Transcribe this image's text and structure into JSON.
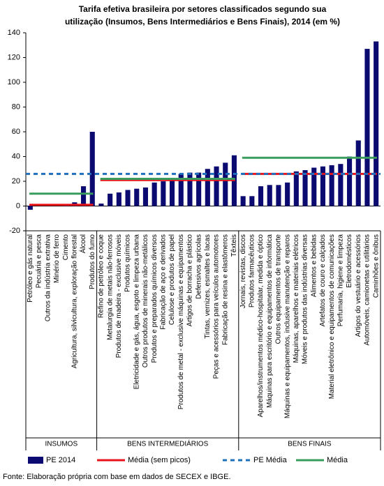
{
  "chart_data": {
    "type": "bar",
    "title": [
      "Tarifa efetiva brasileira por setores classificados segundo sua",
      "utilização (Insumos, Bens Intermediários e Bens Finais), 2014 (em %)"
    ],
    "groups": [
      {
        "name": "INSUMOS",
        "categories": [
          "Petróleo e gás natural",
          "Pecuária e pesca",
          "Outros da indústria extrativa",
          "Minério de ferro",
          "Cimento",
          "Agricultura, silvicultura, exploração florestal",
          "Álcool",
          "Produtos do fumo"
        ]
      },
      {
        "name": "BENS INTERMEDIÁRIOS",
        "categories": [
          "Refino de petróleo e coque",
          "Metalurgia de metais não-ferrosos",
          "Produtos de madeira - exclusive móveis",
          "Produtos  químicos",
          "Eletricidade e gás, água, esgoto e limpeza urbana",
          "Outros produtos de minerais não-metálicos",
          "Produtos e preparados químicos diversos",
          "Fabricação de aço e derivados",
          "Celulose e produtos de papel",
          "Produtos de metal - exclusive máquinas e equipamentos",
          "Artigos de borracha e plástico",
          "Defensivos agrícolas",
          "Tintas, vernizes, esmaltes e lacas",
          "Peças e acessórios para veículos automotores",
          "Fabricação de resina e elastômeros",
          "Têxteis"
        ]
      },
      {
        "name": "BENS FINAIS",
        "categories": [
          "Jornais, revistas, discos",
          "Produtos farmacêuticos",
          "Aparelhos/instrumentos médico-hospitalar, medida e óptico",
          "Máquinas para escritório e equipamentos de informática",
          "Outros equipamentos de transporte",
          "Máquinas e equipamentos, inclusive manutenção e reparos",
          "Máquinas, aparelhos e materiais elétricos",
          "Móveis e produtos das indústrias diversas",
          "Alimentos e bebidas",
          "Artefatos de couro e calçados",
          "Material eletrônico e equipamentos de comunicações",
          "Perfumaria, higiene e limpeza",
          "Eletrodomésticos",
          "Artigos do vestuário e acessórios",
          "Automóveis, camionetas e utilitários",
          "Caminhões e ônibus"
        ]
      }
    ],
    "series": [
      {
        "name": "PE 2014",
        "color": "#0a0a70",
        "values": [
          -3,
          0,
          0,
          0,
          1,
          3,
          16,
          60,
          2,
          10,
          11,
          13,
          14,
          15,
          19,
          20,
          22,
          26,
          27,
          27,
          30,
          32,
          35,
          41,
          8,
          8,
          16,
          17,
          17,
          19,
          28,
          29,
          31,
          32,
          33,
          34,
          40,
          53,
          127,
          133
        ]
      },
      {
        "name": "Média (sem picos)",
        "color": "#e8141b",
        "values": [
          1,
          21,
          26
        ]
      },
      {
        "name": "PE Média",
        "color": "#1f6fbf",
        "values": [
          26
        ]
      },
      {
        "name": "Média",
        "color": "#3a9d5d",
        "values": [
          10,
          22,
          39
        ]
      }
    ],
    "ylim": [
      -20,
      140
    ],
    "yticks": [
      -20,
      0,
      20,
      40,
      60,
      80,
      100,
      120,
      140
    ],
    "source": "Fonte: Elaboração própria com base em dados de SECEX e IBGE."
  }
}
